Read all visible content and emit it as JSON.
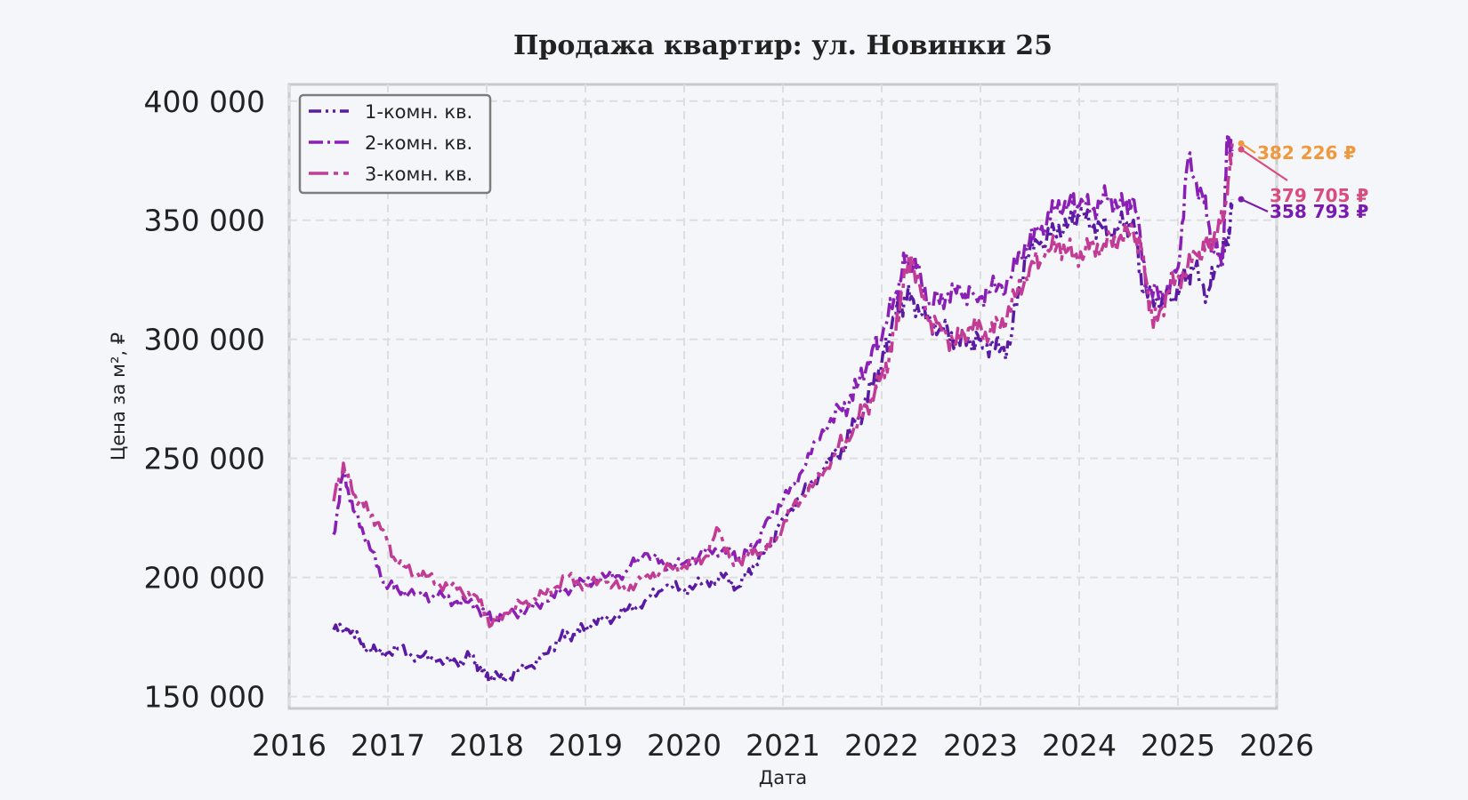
{
  "chart_data": {
    "type": "line",
    "title": "Продажа квартир: ул. Новинки 25",
    "xlabel": "Дата",
    "ylabel": "Цена за м², ₽",
    "xlim": [
      2016.0,
      2026.0
    ],
    "ylim": [
      145000,
      407000
    ],
    "x_ticks": [
      2016,
      2017,
      2018,
      2019,
      2020,
      2021,
      2022,
      2023,
      2024,
      2025,
      2026
    ],
    "x_tick_labels": [
      "2016",
      "2017",
      "2018",
      "2019",
      "2020",
      "2021",
      "2022",
      "2023",
      "2024",
      "2025",
      "2026"
    ],
    "y_ticks": [
      150000,
      200000,
      250000,
      300000,
      350000,
      400000
    ],
    "y_tick_labels": [
      "150 000",
      "200 000",
      "250 000",
      "300 000",
      "350 000",
      "400 000"
    ],
    "grid": true,
    "legend_position": "top-left",
    "series": [
      {
        "name": "1-комн. кв.",
        "color": "#5a1aa3",
        "dash": "dash-dot-dot",
        "x": [
          2016.45,
          2016.6,
          2016.75,
          2016.9,
          2017.1,
          2017.3,
          2017.5,
          2017.7,
          2017.85,
          2017.95,
          2018.05,
          2018.2,
          2018.4,
          2018.6,
          2018.75,
          2018.9,
          2019.0,
          2019.2,
          2019.4,
          2019.6,
          2019.8,
          2020.0,
          2020.2,
          2020.4,
          2020.55,
          2020.7,
          2020.85,
          2021.0,
          2021.2,
          2021.4,
          2021.6,
          2021.75,
          2021.9,
          2022.0,
          2022.1,
          2022.2,
          2022.3,
          2022.45,
          2022.6,
          2022.75,
          2022.9,
          2023.0,
          2023.15,
          2023.3,
          2023.45,
          2023.6,
          2023.75,
          2023.9,
          2024.0,
          2024.15,
          2024.3,
          2024.45,
          2024.55,
          2024.65,
          2024.8,
          2024.95,
          2025.05,
          2025.15,
          2025.3,
          2025.4,
          2025.5,
          2025.55
        ],
        "values": [
          178000,
          178000,
          172000,
          168000,
          170000,
          167000,
          165000,
          164000,
          168000,
          160000,
          158000,
          158000,
          162000,
          168000,
          175000,
          176000,
          180000,
          182000,
          186000,
          190000,
          196000,
          195000,
          198000,
          200000,
          196000,
          205000,
          212000,
          225000,
          235000,
          245000,
          255000,
          265000,
          280000,
          290000,
          305000,
          315000,
          318000,
          308000,
          305000,
          300000,
          298000,
          300000,
          296000,
          298000,
          335000,
          340000,
          345000,
          350000,
          352000,
          348000,
          345000,
          348000,
          350000,
          320000,
          315000,
          318000,
          325000,
          330000,
          320000,
          330000,
          340000,
          358793
        ]
      },
      {
        "name": "2-комн. кв.",
        "color": "#8a1fb5",
        "dash": "dash-dot",
        "x": [
          2016.45,
          2016.55,
          2016.65,
          2016.8,
          2016.95,
          2017.1,
          2017.3,
          2017.5,
          2017.7,
          2017.9,
          2018.05,
          2018.2,
          2018.4,
          2018.6,
          2018.8,
          2019.0,
          2019.2,
          2019.4,
          2019.6,
          2019.8,
          2020.0,
          2020.2,
          2020.4,
          2020.55,
          2020.7,
          2020.85,
          2021.0,
          2021.2,
          2021.4,
          2021.6,
          2021.75,
          2021.9,
          2022.0,
          2022.15,
          2022.25,
          2022.35,
          2022.5,
          2022.65,
          2022.8,
          2022.95,
          2023.1,
          2023.3,
          2023.45,
          2023.6,
          2023.75,
          2023.9,
          2024.0,
          2024.15,
          2024.3,
          2024.45,
          2024.55,
          2024.7,
          2024.85,
          2025.0,
          2025.1,
          2025.25,
          2025.35,
          2025.45,
          2025.5,
          2025.55
        ],
        "values": [
          218000,
          245000,
          228000,
          215000,
          198000,
          195000,
          193000,
          192000,
          190000,
          188000,
          182000,
          185000,
          186000,
          190000,
          195000,
          198000,
          200000,
          202000,
          210000,
          205000,
          206000,
          210000,
          212000,
          208000,
          212000,
          225000,
          232000,
          245000,
          262000,
          270000,
          280000,
          295000,
          300000,
          320000,
          335000,
          330000,
          315000,
          318000,
          320000,
          318000,
          320000,
          325000,
          340000,
          345000,
          355000,
          358000,
          356000,
          355000,
          360000,
          355000,
          360000,
          320000,
          318000,
          330000,
          375000,
          360000,
          340000,
          330000,
          385000,
          379705
        ]
      },
      {
        "name": "3-комн. кв.",
        "color": "#c23b95",
        "dash": "long-dash-dot",
        "x": [
          2016.45,
          2016.55,
          2016.65,
          2016.8,
          2016.95,
          2017.1,
          2017.3,
          2017.5,
          2017.7,
          2017.9,
          2018.05,
          2018.2,
          2018.4,
          2018.6,
          2018.8,
          2019.0,
          2019.2,
          2019.4,
          2019.6,
          2019.8,
          2020.0,
          2020.2,
          2020.35,
          2020.5,
          2020.65,
          2020.8,
          2020.95,
          2021.1,
          2021.3,
          2021.5,
          2021.7,
          2021.85,
          2022.0,
          2022.1,
          2022.2,
          2022.3,
          2022.45,
          2022.6,
          2022.75,
          2022.9,
          2023.05,
          2023.2,
          2023.35,
          2023.5,
          2023.65,
          2023.8,
          2023.95,
          2024.1,
          2024.25,
          2024.4,
          2024.55,
          2024.65,
          2024.75,
          2024.9,
          2025.05,
          2025.2,
          2025.3,
          2025.4,
          2025.5,
          2025.55
        ],
        "values": [
          232000,
          248000,
          235000,
          228000,
          220000,
          205000,
          202000,
          198000,
          195000,
          192000,
          180000,
          185000,
          190000,
          193000,
          200000,
          197000,
          198000,
          195000,
          200000,
          203000,
          205000,
          208000,
          220000,
          205000,
          210000,
          210000,
          218000,
          230000,
          238000,
          250000,
          260000,
          272000,
          285000,
          295000,
          320000,
          335000,
          310000,
          305000,
          298000,
          305000,
          303000,
          305000,
          318000,
          330000,
          335000,
          340000,
          335000,
          338000,
          340000,
          342000,
          345000,
          335000,
          305000,
          320000,
          328000,
          335000,
          340000,
          345000,
          360000,
          382226
        ]
      }
    ],
    "annotations": [
      {
        "text": "382 226 ₽",
        "series": "3-комн. кв.",
        "color": "#f0983c"
      },
      {
        "text": "379 705 ₽",
        "series": "2-комн. кв.",
        "color": "#d84d7c"
      },
      {
        "text": "358 793 ₽",
        "series": "1-комн. кв.",
        "color": "#7a1ab0"
      }
    ]
  }
}
